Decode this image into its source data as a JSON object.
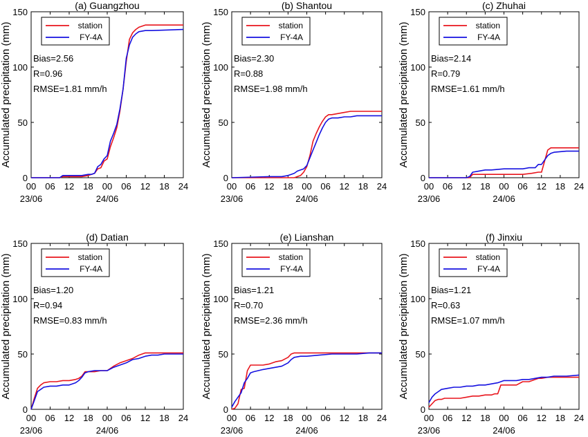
{
  "figure": {
    "ylabel": "Accumulated precipitation (mm)",
    "colors": {
      "station": "#e8141c",
      "fy4a": "#1410e0"
    }
  },
  "chart_data": [
    {
      "type": "line",
      "title": "(a) Guangzhou",
      "xticks": [
        "00",
        "06",
        "12",
        "18",
        "00",
        "06",
        "12",
        "18",
        "24"
      ],
      "date_labels": [
        {
          "at": 0,
          "text": "23/06"
        },
        {
          "at": 24,
          "text": "24/06"
        }
      ],
      "xlim": [
        0,
        48
      ],
      "ylim": [
        0,
        150
      ],
      "yticks": [
        0,
        50,
        100,
        150
      ],
      "legend": {
        "location": "top-left",
        "entries": [
          "station",
          "FY-4A"
        ]
      },
      "stats": [
        "Bias=2.56",
        "R=0.96",
        "RMSE=1.81 mm/h"
      ],
      "series": [
        {
          "name": "station",
          "x": [
            0,
            9,
            10,
            12,
            16,
            18,
            19,
            20,
            21,
            22,
            23,
            24,
            25,
            26,
            27,
            28,
            29,
            30,
            31,
            32,
            33,
            34,
            36,
            38,
            48
          ],
          "y": [
            0,
            0,
            1,
            1,
            1,
            2,
            3,
            4,
            8,
            9,
            15,
            17,
            28,
            36,
            45,
            60,
            80,
            105,
            125,
            131,
            134,
            136,
            138,
            138,
            138
          ]
        },
        {
          "name": "FY-4A",
          "x": [
            0,
            9,
            10,
            12,
            16,
            18,
            19,
            20,
            21,
            22,
            23,
            24,
            25,
            26,
            27,
            28,
            29,
            30,
            31,
            32,
            33,
            34,
            36,
            38,
            48
          ],
          "y": [
            0,
            0,
            2,
            2,
            2,
            3,
            3,
            4,
            10,
            12,
            17,
            20,
            33,
            40,
            48,
            62,
            80,
            108,
            120,
            127,
            130,
            132,
            133,
            133,
            134
          ]
        }
      ]
    },
    {
      "type": "line",
      "title": "(b) Shantou",
      "xticks": [
        "00",
        "06",
        "12",
        "18",
        "00",
        "06",
        "12",
        "18",
        "24"
      ],
      "date_labels": [
        {
          "at": 0,
          "text": "23/06"
        },
        {
          "at": 24,
          "text": "24/06"
        }
      ],
      "xlim": [
        0,
        48
      ],
      "ylim": [
        0,
        150
      ],
      "yticks": [
        0,
        50,
        100,
        150
      ],
      "legend": {
        "location": "top-left",
        "entries": [
          "station",
          "FY-4A"
        ]
      },
      "stats": [
        "Bias=2.30",
        "R=0.88",
        "RMSE=1.98 mm/h"
      ],
      "series": [
        {
          "name": "station",
          "x": [
            0,
            18,
            20,
            21,
            22,
            23,
            24,
            25,
            26,
            27,
            28,
            29,
            30,
            31,
            32,
            34,
            36,
            38,
            40,
            48
          ],
          "y": [
            0,
            0,
            0,
            1,
            2,
            5,
            10,
            20,
            33,
            40,
            46,
            51,
            55,
            57,
            57,
            58,
            59,
            60,
            60,
            60
          ]
        },
        {
          "name": "FY-4A",
          "x": [
            0,
            12,
            16,
            18,
            19,
            20,
            21,
            22,
            23,
            24,
            25,
            26,
            27,
            28,
            29,
            30,
            31,
            32,
            34,
            36,
            38,
            40,
            44,
            48
          ],
          "y": [
            0,
            1,
            1,
            2,
            3,
            4,
            6,
            7,
            8,
            11,
            18,
            25,
            32,
            39,
            45,
            50,
            53,
            54,
            54,
            55,
            55,
            56,
            56,
            56
          ]
        }
      ]
    },
    {
      "type": "line",
      "title": "(c) Zhuhai",
      "xticks": [
        "00",
        "06",
        "12",
        "18",
        "00",
        "06",
        "12",
        "18",
        "24"
      ],
      "date_labels": [
        {
          "at": 0,
          "text": "23/06"
        },
        {
          "at": 24,
          "text": "24/06"
        }
      ],
      "xlim": [
        0,
        48
      ],
      "ylim": [
        0,
        150
      ],
      "yticks": [
        0,
        50,
        100,
        150
      ],
      "legend": {
        "location": "top-left",
        "entries": [
          "station",
          "FY-4A"
        ]
      },
      "stats": [
        "Bias=2.14",
        "R=0.79",
        "RMSE=1.61 mm/h"
      ],
      "series": [
        {
          "name": "station",
          "x": [
            0,
            12,
            13,
            14,
            20,
            24,
            30,
            33,
            35,
            36,
            37,
            38,
            39,
            40,
            44,
            48
          ],
          "y": [
            0,
            0,
            0,
            3,
            3,
            3,
            3,
            4,
            5,
            5,
            15,
            25,
            27,
            27,
            27,
            27
          ]
        },
        {
          "name": "FY-4A",
          "x": [
            0,
            12,
            13,
            14,
            16,
            18,
            20,
            24,
            28,
            30,
            32,
            34,
            35,
            36,
            37,
            38,
            39,
            40,
            44,
            48
          ],
          "y": [
            0,
            0,
            1,
            5,
            6,
            7,
            7,
            8,
            8,
            8,
            9,
            9,
            12,
            12,
            16,
            20,
            22,
            23,
            24,
            24
          ]
        }
      ]
    },
    {
      "type": "line",
      "title": "(d) Datian",
      "xticks": [
        "00",
        "06",
        "12",
        "18",
        "00",
        "06",
        "12",
        "18",
        "24"
      ],
      "date_labels": [
        {
          "at": 0,
          "text": "23/06"
        },
        {
          "at": 24,
          "text": "24/06"
        }
      ],
      "xlim": [
        0,
        48
      ],
      "ylim": [
        0,
        150
      ],
      "yticks": [
        0,
        50,
        100,
        150
      ],
      "legend": {
        "location": "top-left",
        "entries": [
          "station",
          "FY-4A"
        ]
      },
      "stats": [
        "Bias=1.20",
        "R=0.94",
        "RMSE=0.83 mm/h"
      ],
      "series": [
        {
          "name": "station",
          "x": [
            0,
            1,
            2,
            3,
            4,
            6,
            8,
            10,
            12,
            14,
            15,
            16,
            17,
            18,
            20,
            22,
            24,
            26,
            28,
            30,
            32,
            34,
            36,
            38,
            40,
            42,
            44,
            48
          ],
          "y": [
            0,
            10,
            19,
            22,
            24,
            25,
            25,
            26,
            26,
            27,
            28,
            30,
            34,
            34,
            34,
            35,
            35,
            39,
            42,
            44,
            46,
            49,
            51,
            51,
            51,
            51,
            51,
            51
          ]
        },
        {
          "name": "FY-4A",
          "x": [
            0,
            1,
            2,
            3,
            4,
            6,
            8,
            10,
            12,
            14,
            15,
            16,
            17,
            18,
            20,
            22,
            24,
            26,
            28,
            30,
            32,
            34,
            36,
            38,
            40,
            42,
            44,
            48
          ],
          "y": [
            0,
            8,
            16,
            18,
            20,
            21,
            21,
            22,
            22,
            24,
            26,
            29,
            33,
            34,
            35,
            35,
            35,
            38,
            40,
            42,
            45,
            46,
            48,
            49,
            49,
            50,
            50,
            50
          ]
        }
      ]
    },
    {
      "type": "line",
      "title": "(e) Lianshan",
      "xticks": [
        "00",
        "06",
        "12",
        "18",
        "00",
        "06",
        "12",
        "18",
        "24"
      ],
      "date_labels": [
        {
          "at": 0,
          "text": "23/06"
        },
        {
          "at": 24,
          "text": "24/06"
        }
      ],
      "xlim": [
        0,
        48
      ],
      "ylim": [
        0,
        150
      ],
      "yticks": [
        0,
        50,
        100,
        150
      ],
      "legend": {
        "location": "top-left",
        "entries": [
          "station",
          "FY-4A"
        ]
      },
      "stats": [
        "Bias=1.21",
        "R=0.70",
        "RMSE=2.36 mm/h"
      ],
      "series": [
        {
          "name": "station",
          "x": [
            0,
            1,
            2,
            3,
            4,
            5,
            6,
            7,
            10,
            12,
            14,
            16,
            18,
            19,
            20,
            22,
            24,
            28,
            32,
            36,
            40,
            44,
            48
          ],
          "y": [
            0,
            1,
            5,
            18,
            19,
            35,
            40,
            40,
            40,
            41,
            43,
            44,
            47,
            50,
            51,
            51,
            51,
            51,
            51,
            51,
            51,
            51,
            51
          ]
        },
        {
          "name": "FY-4A",
          "x": [
            0,
            1,
            2,
            3,
            4,
            5,
            6,
            7,
            10,
            12,
            14,
            16,
            18,
            19,
            20,
            22,
            24,
            28,
            32,
            36,
            40,
            44,
            48
          ],
          "y": [
            2,
            7,
            11,
            15,
            24,
            28,
            33,
            34,
            36,
            37,
            38,
            39,
            42,
            45,
            47,
            48,
            48,
            49,
            50,
            50,
            50,
            51,
            51
          ]
        }
      ]
    },
    {
      "type": "line",
      "title": "(f) Jinxiu",
      "xticks": [
        "00",
        "06",
        "12",
        "18",
        "00",
        "06",
        "12",
        "18",
        "24"
      ],
      "date_labels": [
        {
          "at": 0,
          "text": "23/06"
        },
        {
          "at": 24,
          "text": "24/06"
        }
      ],
      "xlim": [
        0,
        48
      ],
      "ylim": [
        0,
        150
      ],
      "yticks": [
        0,
        50,
        100,
        150
      ],
      "legend": {
        "location": "top-left",
        "entries": [
          "station",
          "FY-4A"
        ]
      },
      "stats": [
        "Bias=1.21",
        "R=0.63",
        "RMSE=1.07 mm/h"
      ],
      "series": [
        {
          "name": "station",
          "x": [
            0,
            1,
            2,
            3,
            4,
            5,
            6,
            8,
            10,
            12,
            14,
            16,
            18,
            20,
            21,
            22,
            23,
            24,
            26,
            28,
            30,
            32,
            34,
            35,
            36,
            38,
            40,
            48
          ],
          "y": [
            2,
            5,
            8,
            9,
            9,
            10,
            10,
            10,
            10,
            11,
            12,
            12,
            13,
            13,
            14,
            14,
            22,
            22,
            22,
            22,
            25,
            25,
            27,
            28,
            28,
            29,
            29,
            29
          ]
        },
        {
          "name": "FY-4A",
          "x": [
            0,
            1,
            2,
            3,
            4,
            6,
            8,
            10,
            12,
            14,
            16,
            18,
            20,
            22,
            23,
            24,
            26,
            28,
            30,
            32,
            34,
            36,
            38,
            40,
            44,
            48
          ],
          "y": [
            6,
            11,
            14,
            16,
            18,
            19,
            20,
            20,
            21,
            21,
            22,
            22,
            23,
            24,
            25,
            26,
            26,
            26,
            27,
            27,
            28,
            29,
            29,
            30,
            30,
            31
          ]
        }
      ]
    }
  ]
}
